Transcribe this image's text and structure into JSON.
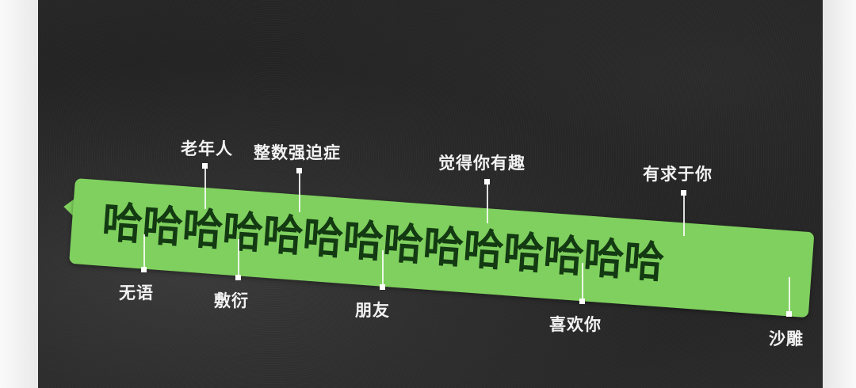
{
  "bubble": {
    "text": "哈哈哈哈哈哈哈哈哈哈哈哈哈哈"
  },
  "labels_above": [
    {
      "text": "老年人"
    },
    {
      "text": "整数强迫症"
    },
    {
      "text": "觉得你有趣"
    },
    {
      "text": "有求于你"
    }
  ],
  "labels_below": [
    {
      "text": "无语"
    },
    {
      "text": "敷衍"
    },
    {
      "text": "朋友"
    },
    {
      "text": "喜欢你"
    },
    {
      "text": "沙雕"
    }
  ],
  "colors": {
    "bubble": "#7fd05e",
    "bubble_text": "#133a12",
    "background": "#222222",
    "label": "#f2f2f2"
  }
}
